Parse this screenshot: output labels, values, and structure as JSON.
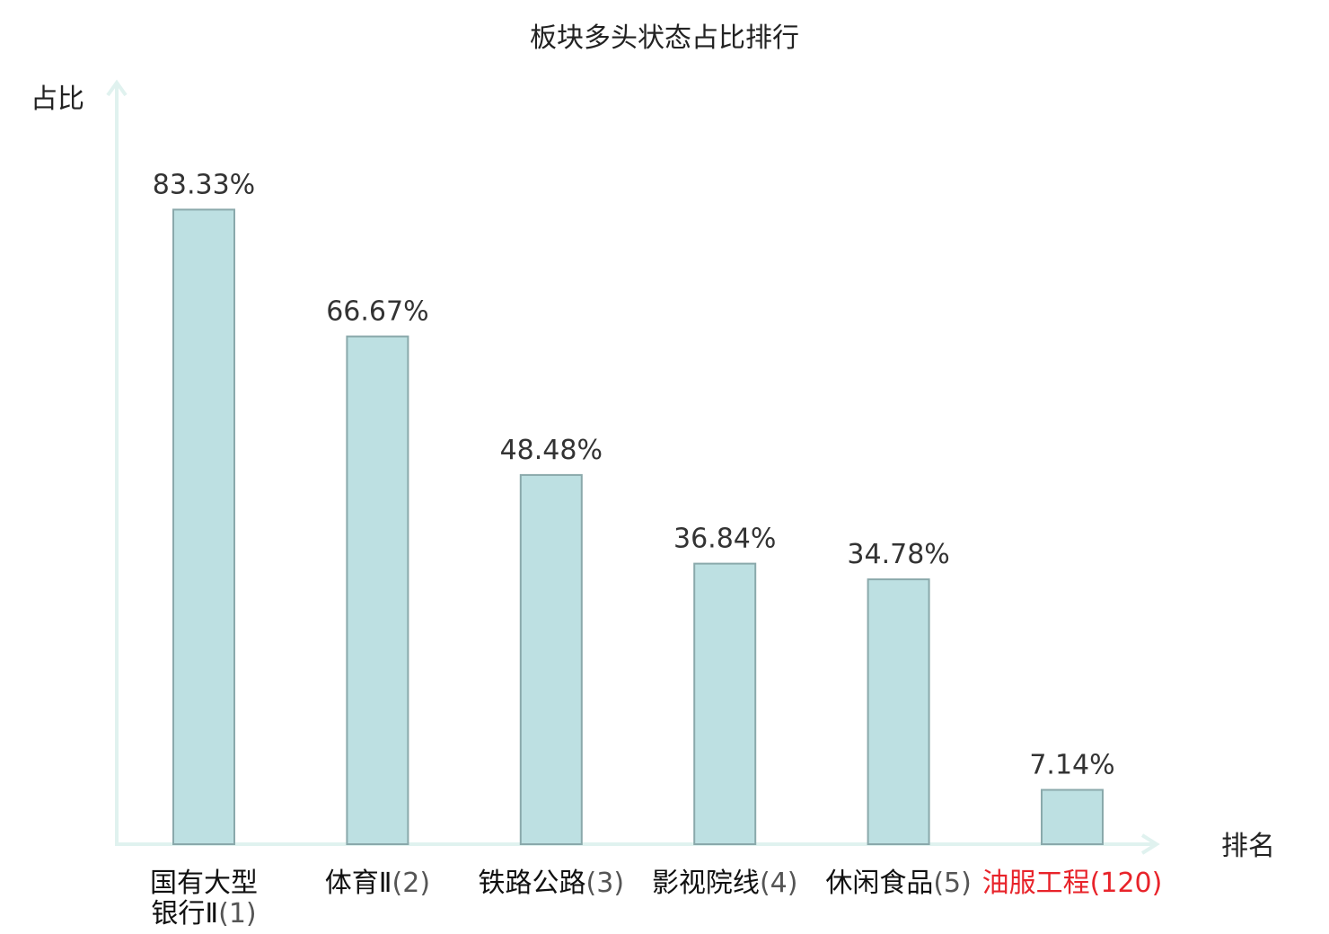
{
  "chart_data": {
    "type": "bar",
    "title": "板块多头状态占比排行",
    "ylabel": "占比",
    "xlabel": "排名",
    "ylim": [
      0,
      100
    ],
    "grid": false,
    "categories": [
      {
        "name_lines": [
          "国有大型",
          "银行Ⅱ"
        ],
        "rank": "(1)",
        "highlight": false
      },
      {
        "name_lines": [
          "体育Ⅱ"
        ],
        "rank": "(2)",
        "highlight": false
      },
      {
        "name_lines": [
          "铁路公路"
        ],
        "rank": "(3)",
        "highlight": false
      },
      {
        "name_lines": [
          "影视院线"
        ],
        "rank": "(4)",
        "highlight": false
      },
      {
        "name_lines": [
          "休闲食品"
        ],
        "rank": "(5)",
        "highlight": false
      },
      {
        "name_lines": [
          "油服工程"
        ],
        "rank": "(120)",
        "highlight": true
      }
    ],
    "values": [
      83.33,
      66.67,
      48.48,
      36.84,
      34.78,
      7.14
    ],
    "value_labels": [
      "83.33%",
      "66.67%",
      "48.48%",
      "36.84%",
      "34.78%",
      "7.14%"
    ],
    "colors": {
      "bar_fill": "#bde0e2",
      "bar_stroke": "#8aa9ab",
      "axis": "#e0f2ef",
      "highlight_text": "#e8232a"
    }
  }
}
